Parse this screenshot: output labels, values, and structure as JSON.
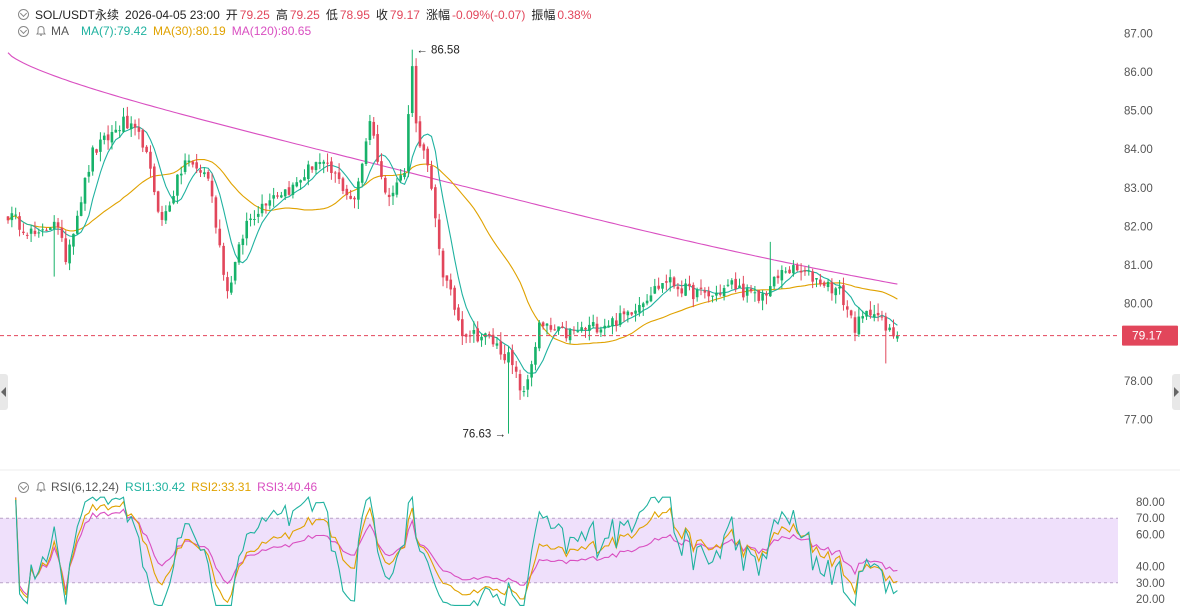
{
  "header": {
    "symbol": "SOL/USDT永续",
    "datetime": "2026-04-05 23:00",
    "open_label": "开",
    "open": "79.25",
    "high_label": "高",
    "high": "79.25",
    "low_label": "低",
    "low": "78.95",
    "close_label": "收",
    "close": "79.17",
    "change_label": "涨幅",
    "change": "-0.09%(-0.07)",
    "amplitude_label": "振幅",
    "amplitude": "0.38%"
  },
  "ma_legend": {
    "name": "MA",
    "ma7": "MA(7):79.42",
    "ma30": "MA(30):80.19",
    "ma120": "MA(120):80.65"
  },
  "rsi_legend": {
    "name": "RSI(6,12,24)",
    "rsi1": "RSI1:30.42",
    "rsi2": "RSI2:33.31",
    "rsi3": "RSI3:40.46"
  },
  "colors": {
    "up": "#17b26a",
    "down": "#e2465b",
    "ma7": "#20b2a0",
    "ma30": "#e0a200",
    "ma120": "#d94fc1",
    "rsi_band": "#efe0fb"
  },
  "chart_data": [
    {
      "type": "candlestick",
      "y_ticks": [
        "87.00",
        "86.00",
        "85.00",
        "84.00",
        "83.00",
        "82.00",
        "81.00",
        "80.00",
        "78.00",
        "77.00"
      ],
      "ylim": [
        76.0,
        87.4
      ],
      "current_price": 79.17,
      "current_price_label": "79.17",
      "high_label": "86.58",
      "low_label": "76.63",
      "keypoints": [
        [
          0,
          82.3
        ],
        [
          8,
          81.7
        ],
        [
          12,
          82.2
        ],
        [
          15,
          81.2
        ],
        [
          22,
          83.9
        ],
        [
          30,
          84.7
        ],
        [
          35,
          84.2
        ],
        [
          40,
          82.1
        ],
        [
          46,
          83.7
        ],
        [
          52,
          83.3
        ],
        [
          57,
          80.3
        ],
        [
          62,
          82.1
        ],
        [
          68,
          82.8
        ],
        [
          74,
          83.0
        ],
        [
          80,
          83.7
        ],
        [
          85,
          83.3
        ],
        [
          90,
          82.6
        ],
        [
          94,
          84.8
        ],
        [
          98,
          82.8
        ],
        [
          103,
          83.4
        ],
        [
          105,
          86.3
        ],
        [
          106,
          84.6
        ],
        [
          109,
          83.5
        ],
        [
          113,
          80.8
        ],
        [
          118,
          79.3
        ],
        [
          125,
          79.1
        ],
        [
          130,
          78.6
        ],
        [
          134,
          77.6
        ],
        [
          138,
          79.4
        ],
        [
          145,
          79.2
        ],
        [
          152,
          79.4
        ],
        [
          159,
          79.6
        ],
        [
          167,
          80.3
        ],
        [
          171,
          80.6
        ],
        [
          177,
          80.3
        ],
        [
          183,
          80.2
        ],
        [
          188,
          80.5
        ],
        [
          195,
          80.1
        ],
        [
          202,
          80.9
        ],
        [
          206,
          80.8
        ],
        [
          211,
          80.6
        ],
        [
          216,
          80.3
        ],
        [
          220,
          79.4
        ],
        [
          225,
          79.9
        ],
        [
          228,
          79.3
        ],
        [
          231,
          79.17
        ]
      ]
    },
    {
      "type": "line",
      "name": "RSI",
      "y_ticks": [
        "80.00",
        "70.00",
        "60.00",
        "40.00",
        "30.00",
        "20.00"
      ],
      "ylim": [
        15,
        85
      ],
      "band": [
        30,
        70
      ]
    }
  ]
}
